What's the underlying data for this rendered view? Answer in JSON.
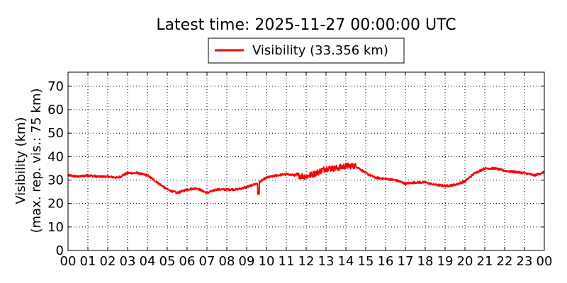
{
  "chart_data": {
    "type": "line",
    "title": "Latest time: 2025-11-27 00:00:00 UTC",
    "ylabel_lines": [
      "Visibility (km)",
      "(max. rep. vis.: 75 km)"
    ],
    "xlabel": "",
    "xlim": [
      0,
      24
    ],
    "ylim": [
      0,
      76
    ],
    "x_ticks": [
      "00",
      "01",
      "02",
      "03",
      "04",
      "05",
      "06",
      "07",
      "08",
      "09",
      "10",
      "11",
      "12",
      "13",
      "14",
      "15",
      "16",
      "17",
      "18",
      "19",
      "20",
      "21",
      "22",
      "23",
      "00"
    ],
    "y_ticks": [
      0,
      10,
      20,
      30,
      40,
      50,
      60,
      70
    ],
    "grid": true,
    "legend_position": "top-center",
    "series": [
      {
        "name": "Visibility (33.356 km)",
        "color": "#ff0000",
        "x": [
          0,
          0.5,
          1,
          1.5,
          2,
          2.5,
          3,
          3.5,
          4,
          4.5,
          5,
          5.5,
          6,
          6.5,
          7,
          7.5,
          8,
          8.5,
          9,
          9.5,
          10,
          10.5,
          11,
          11.5,
          12,
          12.5,
          13,
          13.5,
          14,
          14.5,
          15,
          15.5,
          16,
          16.5,
          17,
          17.5,
          18,
          18.5,
          19,
          19.5,
          20,
          20.5,
          21,
          21.5,
          22,
          22.5,
          23,
          23.5,
          24
        ],
        "y": [
          32,
          31.5,
          32,
          31.5,
          31.5,
          31,
          33,
          33,
          32,
          29,
          26,
          24.5,
          26,
          26.5,
          24.5,
          26,
          26,
          26,
          27,
          28.5,
          31,
          32,
          32.5,
          32,
          31.5,
          33,
          35,
          35,
          36,
          36,
          33,
          31,
          30.5,
          30,
          28.5,
          29,
          29,
          28,
          27.5,
          28,
          29.5,
          33,
          35,
          35,
          34,
          33.5,
          33,
          32,
          33.4
        ]
      }
    ]
  },
  "colors": {
    "line": "#ff0000",
    "axis": "#000000",
    "background": "#ffffff"
  }
}
